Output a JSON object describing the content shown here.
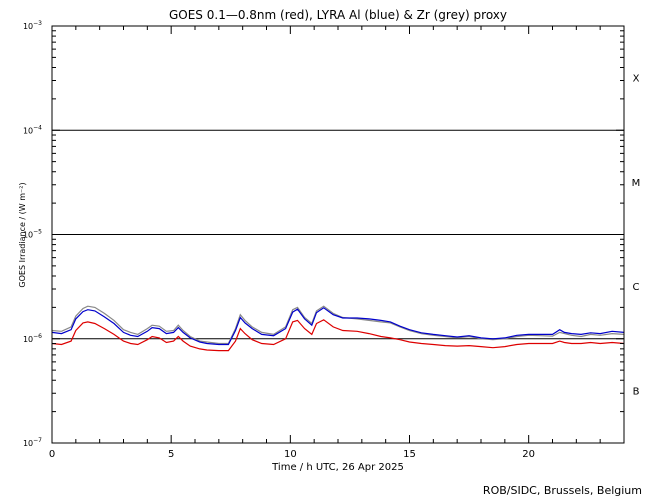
{
  "chart_data": {
    "type": "line",
    "title": "GOES 0.1—0.8nm (red), LYRA Al (blue) & Zr (grey) proxy",
    "xlabel": "Time / h UTC, 26 Apr 2025",
    "ylabel": "GOES Irradiance / (W m⁻²)",
    "xlim": [
      0,
      24
    ],
    "ylim": [
      1e-07,
      0.001
    ],
    "yscale": "log",
    "xticks": [
      0,
      5,
      10,
      15,
      20
    ],
    "x_tick_labels": [
      "0",
      "5",
      "10",
      "15",
      "20"
    ],
    "yticks": [
      {
        "value": 1e-07,
        "base": "10",
        "exp": "−7"
      },
      {
        "value": 1e-06,
        "base": "10",
        "exp": "−6"
      },
      {
        "value": 1e-05,
        "base": "10",
        "exp": "−5"
      },
      {
        "value": 0.0001,
        "base": "10",
        "exp": "−4"
      },
      {
        "value": 0.001,
        "base": "10",
        "exp": "−3"
      }
    ],
    "thresholds": [
      1e-06,
      1e-05,
      0.0001
    ],
    "flare_classes": [
      {
        "label": "X",
        "y": 0.00032
      },
      {
        "label": "M",
        "y": 3.2e-05
      },
      {
        "label": "C",
        "y": 3.2e-06
      },
      {
        "label": "B",
        "y": 3.2e-07
      }
    ],
    "series": [
      {
        "name": "grey",
        "color": "#888888",
        "x": [
          0,
          0.4,
          0.8,
          1.0,
          1.3,
          1.5,
          1.8,
          2.2,
          2.6,
          3.0,
          3.3,
          3.6,
          4.0,
          4.2,
          4.5,
          4.8,
          5.1,
          5.3,
          5.5,
          5.8,
          6.2,
          6.5,
          7.0,
          7.4,
          7.7,
          7.9,
          8.1,
          8.4,
          8.8,
          9.3,
          9.8,
          10.1,
          10.3,
          10.6,
          10.9,
          11.1,
          11.4,
          11.8,
          12.2,
          12.8,
          13.3,
          13.8,
          14.2,
          14.6,
          15.0,
          15.5,
          16.0,
          16.5,
          17.0,
          17.5,
          18.0,
          18.5,
          19.0,
          19.5,
          20.0,
          20.5,
          21.0,
          21.3,
          21.5,
          21.8,
          22.2,
          22.6,
          23.0,
          23.5,
          24.0
        ],
        "y": [
          1.2e-06,
          1.18e-06,
          1.3e-06,
          1.65e-06,
          1.95e-06,
          2.05e-06,
          2e-06,
          1.75e-06,
          1.5e-06,
          1.22e-06,
          1.15e-06,
          1.1e-06,
          1.25e-06,
          1.35e-06,
          1.32e-06,
          1.18e-06,
          1.2e-06,
          1.35e-06,
          1.2e-06,
          1.05e-06,
          9.5e-07,
          9.3e-07,
          9e-07,
          9e-07,
          1.25e-06,
          1.7e-06,
          1.5e-06,
          1.3e-06,
          1.15e-06,
          1.1e-06,
          1.3e-06,
          1.9e-06,
          2e-06,
          1.6e-06,
          1.4e-06,
          1.85e-06,
          2.05e-06,
          1.75e-06,
          1.6e-06,
          1.55e-06,
          1.5e-06,
          1.45e-06,
          1.42e-06,
          1.3e-06,
          1.2e-06,
          1.12e-06,
          1.08e-06,
          1.05e-06,
          1.02e-06,
          1.05e-06,
          1e-06,
          9.8e-07,
          1e-06,
          1.05e-06,
          1.08e-06,
          1.07e-06,
          1.06e-06,
          1.15e-06,
          1.12e-06,
          1.08e-06,
          1.05e-06,
          1.1e-06,
          1.08e-06,
          1.12e-06,
          1.1e-06
        ]
      },
      {
        "name": "blue",
        "color": "#0000cc",
        "x": [
          0,
          0.4,
          0.8,
          1.0,
          1.3,
          1.5,
          1.8,
          2.2,
          2.6,
          3.0,
          3.3,
          3.6,
          4.0,
          4.2,
          4.5,
          4.8,
          5.1,
          5.3,
          5.5,
          5.8,
          6.2,
          6.5,
          7.0,
          7.4,
          7.7,
          7.9,
          8.1,
          8.4,
          8.8,
          9.3,
          9.8,
          10.1,
          10.3,
          10.6,
          10.9,
          11.1,
          11.4,
          11.8,
          12.2,
          12.8,
          13.3,
          13.8,
          14.2,
          14.6,
          15.0,
          15.5,
          16.0,
          16.5,
          17.0,
          17.5,
          18.0,
          18.5,
          19.0,
          19.5,
          20.0,
          20.5,
          21.0,
          21.3,
          21.5,
          21.8,
          22.2,
          22.6,
          23.0,
          23.5,
          24.0
        ],
        "y": [
          1.15e-06,
          1.12e-06,
          1.22e-06,
          1.55e-06,
          1.82e-06,
          1.9e-06,
          1.85e-06,
          1.62e-06,
          1.4e-06,
          1.15e-06,
          1.08e-06,
          1.05e-06,
          1.18e-06,
          1.28e-06,
          1.25e-06,
          1.12e-06,
          1.15e-06,
          1.28e-06,
          1.15e-06,
          1.02e-06,
          9.3e-07,
          9e-07,
          8.8e-07,
          8.8e-07,
          1.2e-06,
          1.6e-06,
          1.42e-06,
          1.25e-06,
          1.1e-06,
          1.07e-06,
          1.25e-06,
          1.8e-06,
          1.92e-06,
          1.55e-06,
          1.35e-06,
          1.78e-06,
          1.98e-06,
          1.7e-06,
          1.58e-06,
          1.58e-06,
          1.55e-06,
          1.5e-06,
          1.45e-06,
          1.32e-06,
          1.22e-06,
          1.14e-06,
          1.1e-06,
          1.07e-06,
          1.04e-06,
          1.07e-06,
          1.02e-06,
          1e-06,
          1.02e-06,
          1.08e-06,
          1.1e-06,
          1.1e-06,
          1.1e-06,
          1.22e-06,
          1.15e-06,
          1.12e-06,
          1.1e-06,
          1.14e-06,
          1.12e-06,
          1.18e-06,
          1.15e-06
        ]
      },
      {
        "name": "red",
        "color": "#dd0000",
        "x": [
          0,
          0.4,
          0.8,
          1.0,
          1.3,
          1.5,
          1.8,
          2.2,
          2.6,
          3.0,
          3.3,
          3.6,
          4.0,
          4.2,
          4.5,
          4.8,
          5.1,
          5.3,
          5.5,
          5.8,
          6.2,
          6.5,
          7.0,
          7.4,
          7.7,
          7.9,
          8.1,
          8.4,
          8.8,
          9.3,
          9.8,
          10.1,
          10.3,
          10.6,
          10.9,
          11.1,
          11.4,
          11.8,
          12.2,
          12.8,
          13.3,
          13.8,
          14.2,
          14.6,
          15.0,
          15.5,
          16.0,
          16.5,
          17.0,
          17.5,
          18.0,
          18.5,
          19.0,
          19.5,
          20.0,
          20.5,
          21.0,
          21.3,
          21.5,
          21.8,
          22.2,
          22.6,
          23.0,
          23.5,
          24.0
        ],
        "y": [
          9e-07,
          8.8e-07,
          9.5e-07,
          1.2e-06,
          1.42e-06,
          1.45e-06,
          1.4e-06,
          1.25e-06,
          1.1e-06,
          9.5e-07,
          9e-07,
          8.8e-07,
          9.8e-07,
          1.05e-06,
          1.02e-06,
          9.2e-07,
          9.5e-07,
          1.05e-06,
          9.5e-07,
          8.5e-07,
          8e-07,
          7.8e-07,
          7.7e-07,
          7.7e-07,
          9.5e-07,
          1.25e-06,
          1.12e-06,
          9.8e-07,
          9e-07,
          8.8e-07,
          1e-06,
          1.45e-06,
          1.5e-06,
          1.25e-06,
          1.1e-06,
          1.4e-06,
          1.52e-06,
          1.3e-06,
          1.2e-06,
          1.18e-06,
          1.12e-06,
          1.05e-06,
          1.02e-06,
          9.8e-07,
          9.3e-07,
          9e-07,
          8.8e-07,
          8.6e-07,
          8.5e-07,
          8.6e-07,
          8.4e-07,
          8.2e-07,
          8.4e-07,
          8.8e-07,
          9e-07,
          9e-07,
          9e-07,
          9.5e-07,
          9.2e-07,
          9e-07,
          9e-07,
          9.2e-07,
          9e-07,
          9.2e-07,
          9e-07
        ]
      }
    ]
  },
  "credit": "ROB/SIDC, Brussels, Belgium"
}
